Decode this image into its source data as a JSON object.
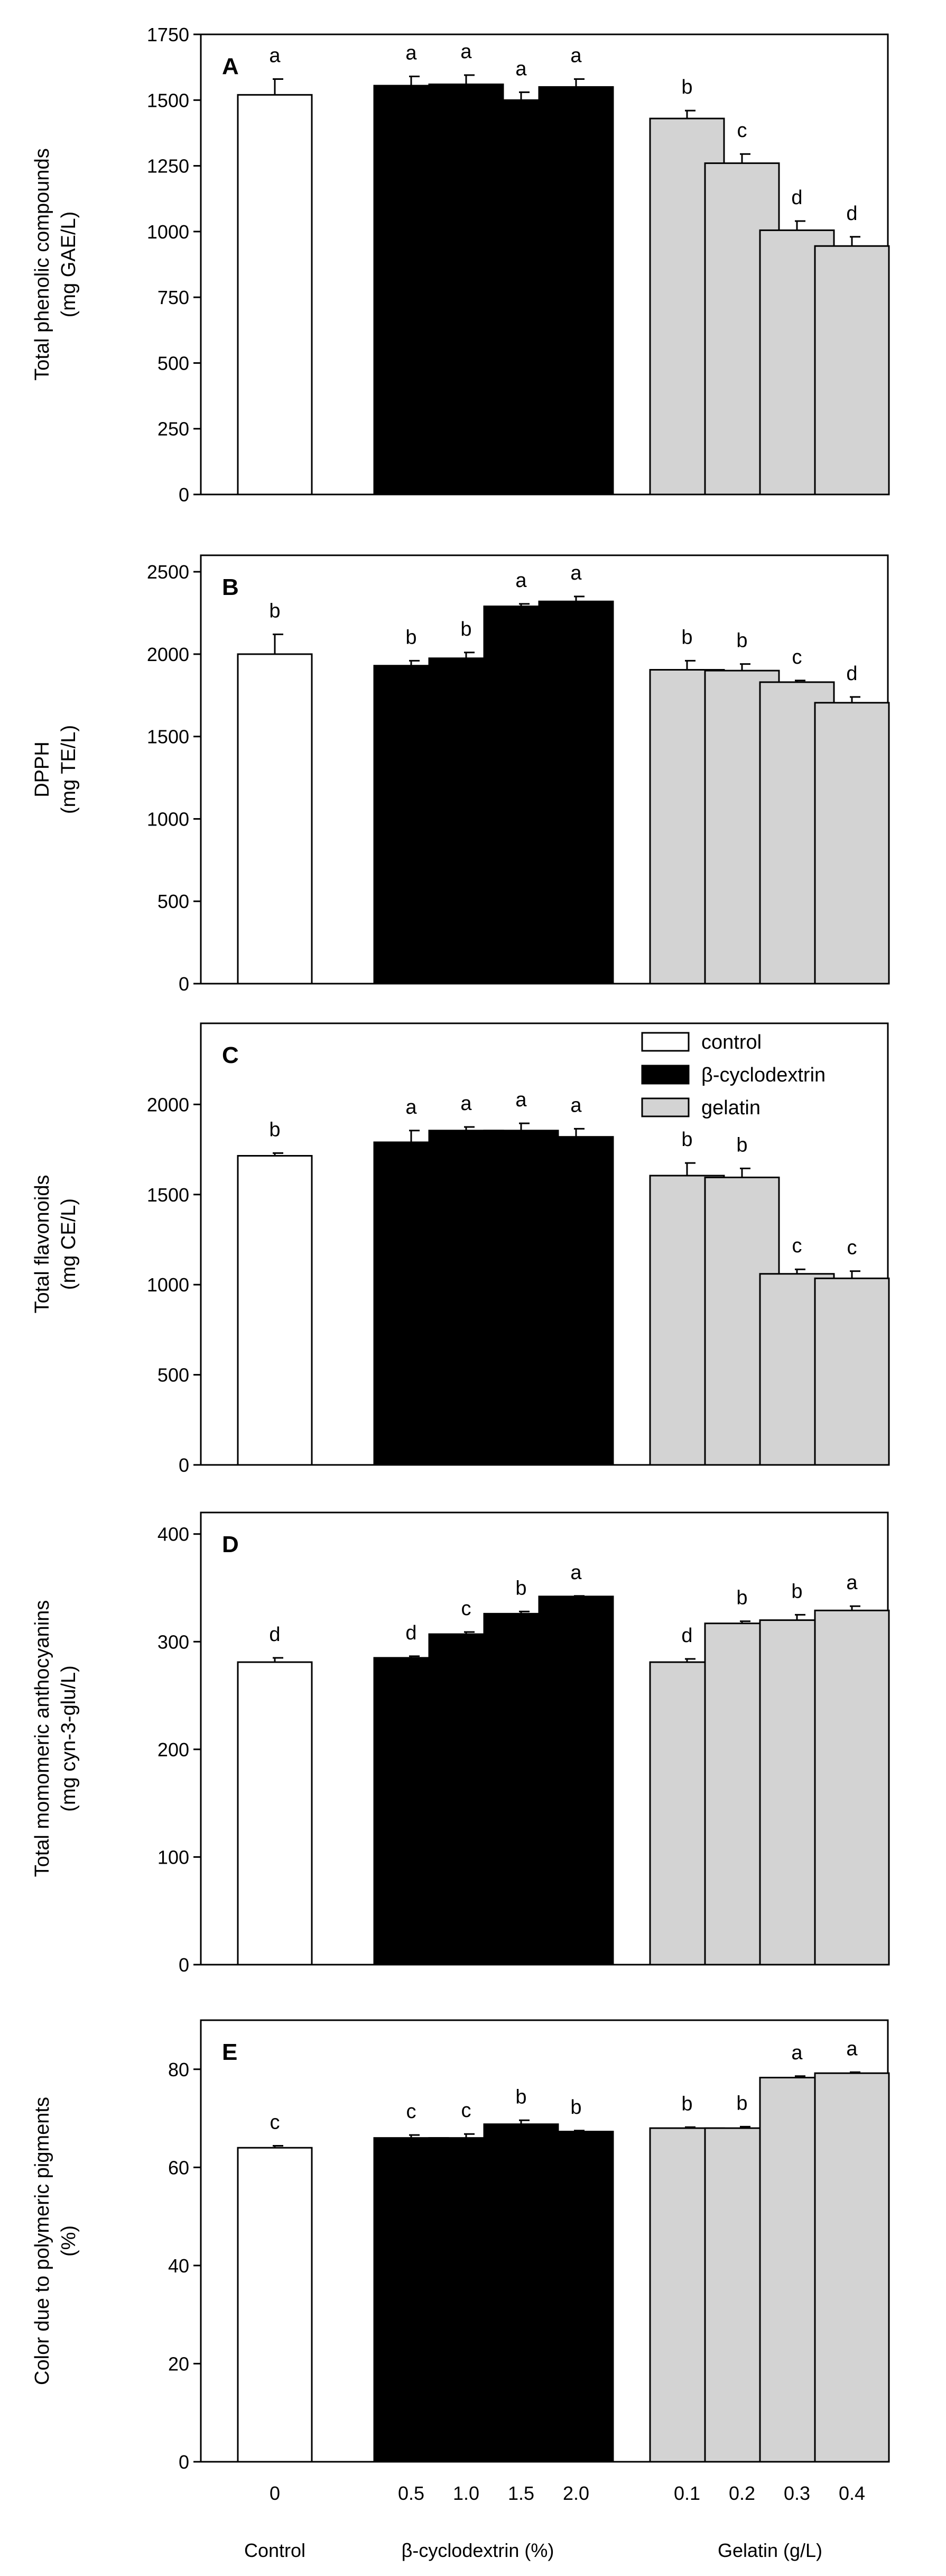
{
  "colors": {
    "control": "#ffffff",
    "cyclodextrin": "#000000",
    "gelatin": "#d3d3d3",
    "stroke": "#000000"
  },
  "legend": {
    "control": "control",
    "cyclodextrin": "β-cyclodextrin",
    "gelatin": "gelatin"
  },
  "x_axis": {
    "doses": [
      "0",
      "0.5",
      "1.0",
      "1.5",
      "2.0",
      "0.1",
      "0.2",
      "0.3",
      "0.4"
    ],
    "groups": [
      "Control",
      "β-cyclodextrin (%)",
      "Gelatin (g/L)"
    ],
    "group_members": [
      [
        0
      ],
      [
        1,
        2,
        3,
        4
      ],
      [
        5,
        6,
        7,
        8
      ]
    ]
  },
  "chart_data": [
    {
      "type": "bar",
      "panel": "A",
      "ylabel_line1": "Total phenolic compounds",
      "ylabel_line2": "(mg GAE/L)",
      "ylim": [
        0,
        1750
      ],
      "yticks": [
        0,
        250,
        500,
        750,
        1000,
        1250,
        1500,
        1750
      ],
      "categories": [
        "0",
        "0.5",
        "1.0",
        "1.5",
        "2.0",
        "0.1",
        "0.2",
        "0.3",
        "0.4"
      ],
      "series": [
        "control",
        "cyclodextrin",
        "cyclodextrin",
        "cyclodextrin",
        "cyclodextrin",
        "gelatin",
        "gelatin",
        "gelatin",
        "gelatin"
      ],
      "values": [
        1520,
        1555,
        1560,
        1500,
        1550,
        1430,
        1260,
        1005,
        945
      ],
      "errors": [
        60,
        35,
        35,
        30,
        30,
        30,
        35,
        35,
        35
      ],
      "letters": [
        "a",
        "a",
        "a",
        "a",
        "a",
        "b",
        "c",
        "d",
        "d"
      ]
    },
    {
      "type": "bar",
      "panel": "B",
      "ylabel_line1": "DPPH",
      "ylabel_line2": "(mg TE/L)",
      "ylim": [
        0,
        2600
      ],
      "yticks": [
        0,
        500,
        1000,
        1500,
        2000,
        2500
      ],
      "categories": [
        "0",
        "0.5",
        "1.0",
        "1.5",
        "2.0",
        "0.1",
        "0.2",
        "0.3",
        "0.4"
      ],
      "series": [
        "control",
        "cyclodextrin",
        "cyclodextrin",
        "cyclodextrin",
        "cyclodextrin",
        "gelatin",
        "gelatin",
        "gelatin",
        "gelatin"
      ],
      "values": [
        2000,
        1930,
        1975,
        2290,
        2320,
        1905,
        1900,
        1830,
        1705
      ],
      "errors": [
        120,
        30,
        35,
        15,
        30,
        55,
        40,
        10,
        35
      ],
      "letters": [
        "b",
        "b",
        "b",
        "a",
        "a",
        "b",
        "b",
        "c",
        "d"
      ]
    },
    {
      "type": "bar",
      "panel": "C",
      "ylabel_line1": "Total flavonoids",
      "ylabel_line2": "(mg CE/L)",
      "ylim": [
        0,
        2450
      ],
      "yticks": [
        0,
        500,
        1000,
        1500,
        2000
      ],
      "categories": [
        "0",
        "0.5",
        "1.0",
        "1.5",
        "2.0",
        "0.1",
        "0.2",
        "0.3",
        "0.4"
      ],
      "series": [
        "control",
        "cyclodextrin",
        "cyclodextrin",
        "cyclodextrin",
        "cyclodextrin",
        "gelatin",
        "gelatin",
        "gelatin",
        "gelatin"
      ],
      "values": [
        1715,
        1790,
        1855,
        1855,
        1820,
        1605,
        1595,
        1060,
        1035
      ],
      "errors": [
        15,
        65,
        20,
        40,
        45,
        70,
        50,
        25,
        40
      ],
      "letters": [
        "b",
        "a",
        "a",
        "a",
        "a",
        "b",
        "b",
        "c",
        "c"
      ],
      "legend_position": "top-right"
    },
    {
      "type": "bar",
      "panel": "D",
      "ylabel_line1": "Total  momomeric  anthocyanins",
      "ylabel_line2": "(mg cyn-3-glu/L)",
      "ylim": [
        0,
        420
      ],
      "yticks": [
        0,
        100,
        200,
        300,
        400
      ],
      "categories": [
        "0",
        "0.5",
        "1.0",
        "1.5",
        "2.0",
        "0.1",
        "0.2",
        "0.3",
        "0.4"
      ],
      "series": [
        "control",
        "cyclodextrin",
        "cyclodextrin",
        "cyclodextrin",
        "cyclodextrin",
        "gelatin",
        "gelatin",
        "gelatin",
        "gelatin"
      ],
      "values": [
        281,
        285,
        307,
        326,
        342,
        281,
        317,
        320,
        329
      ],
      "errors": [
        4,
        1.5,
        2,
        2,
        0.5,
        3,
        2,
        5,
        4
      ],
      "letters": [
        "d",
        "d",
        "c",
        "b",
        "a",
        "d",
        "b",
        "b",
        "a"
      ]
    },
    {
      "type": "bar",
      "panel": "E",
      "ylabel_line1": "Color due to polymeric pigments",
      "ylabel_line2": "(%)",
      "ylim": [
        0,
        90
      ],
      "yticks": [
        0,
        20,
        40,
        60,
        80
      ],
      "categories": [
        "0",
        "0.5",
        "1.0",
        "1.5",
        "2.0",
        "0.1",
        "0.2",
        "0.3",
        "0.4"
      ],
      "series": [
        "control",
        "cyclodextrin",
        "cyclodextrin",
        "cyclodextrin",
        "cyclodextrin",
        "gelatin",
        "gelatin",
        "gelatin",
        "gelatin"
      ],
      "values": [
        64,
        66,
        66,
        68.8,
        67.3,
        68,
        68,
        78.3,
        79.2
      ],
      "errors": [
        0.4,
        0.6,
        0.8,
        0.8,
        0.2,
        0.2,
        0.3,
        0.3,
        0.2
      ],
      "letters": [
        "c",
        "c",
        "c",
        "b",
        "b",
        "b",
        "b",
        "a",
        "a"
      ]
    }
  ]
}
